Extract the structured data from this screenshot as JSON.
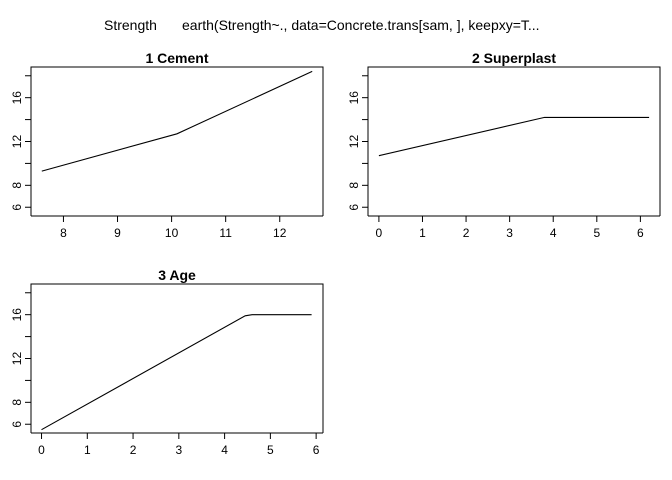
{
  "header": {
    "response": "Strength",
    "call": "earth(Strength~., data=Concrete.trans[sam, ], keepxy=T..."
  },
  "chart_data": [
    {
      "type": "line",
      "title": "1  Cement",
      "x": [
        7.6,
        10.1,
        12.6
      ],
      "y": [
        9.3,
        12.7,
        18.4
      ],
      "xlim": [
        7.4,
        12.8
      ],
      "ylim": [
        5.2,
        18.8
      ],
      "xticks": [
        8,
        9,
        10,
        11,
        12
      ],
      "yticks": [
        6,
        8,
        10,
        12,
        14,
        16,
        18
      ],
      "ylabels": [
        6,
        8,
        12,
        16
      ]
    },
    {
      "type": "line",
      "title": "2  Superplast",
      "x": [
        0,
        3.8,
        6.2
      ],
      "y": [
        10.7,
        14.2,
        14.2
      ],
      "xlim": [
        -0.25,
        6.45
      ],
      "ylim": [
        5.2,
        18.8
      ],
      "xticks": [
        0,
        1,
        2,
        3,
        4,
        5,
        6
      ],
      "yticks": [
        6,
        8,
        10,
        12,
        14,
        16,
        18
      ],
      "ylabels": [
        6,
        8,
        12,
        16
      ]
    },
    {
      "type": "line",
      "title": "3  Age",
      "x": [
        0,
        4.45,
        4.6,
        5.9
      ],
      "y": [
        5.5,
        15.9,
        16.0,
        16.0
      ],
      "xlim": [
        -0.23,
        6.15
      ],
      "ylim": [
        5.2,
        18.8
      ],
      "xticks": [
        0,
        1,
        2,
        3,
        4,
        5,
        6
      ],
      "yticks": [
        6,
        8,
        10,
        12,
        14,
        16,
        18
      ],
      "ylabels": [
        6,
        8,
        12,
        16
      ]
    }
  ]
}
